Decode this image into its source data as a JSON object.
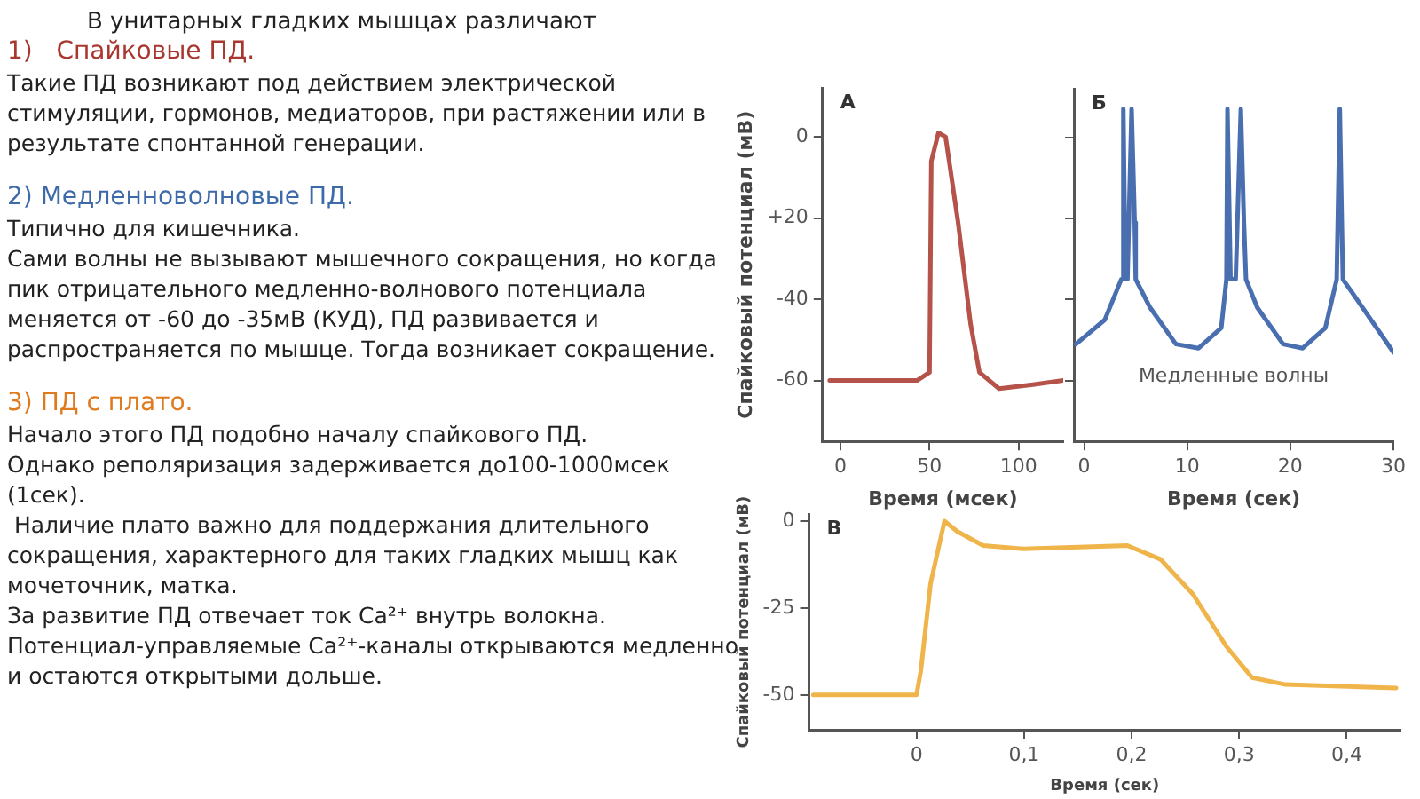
{
  "chart_data": [
    {
      "type": "other",
      "title": "В унитарных гладких мышцах различают",
      "annotations": [
        "1)   Спайковые ПД.",
        "Такие ПД возникают под действием электрической стимуляции, гормонов, медиаторов, при растяжении или в результате спонтанной генерации.",
        "2) Медленноволновые ПД.",
        "Типично для кишечника.\nСами волны не вызывают мышечного сокращения, но когда пик отрицательного медленно-волнового потенциала меняется от -60 до -35мВ (КУД), ПД развивается и распространяется по мышце. Тогда возникает сокращение.",
        "3) ПД с плато.",
        "Начало этого ПД подобно началу спайкового ПД.\nОднако реполяризация задерживается до100-1000мсек (1сек).\n Наличие плато важно для поддержания длительного сокращения, характерного для таких гладких мышц как мочеточник, матка.\nЗа развитие ПД отвечает ток Ca²⁺ внутрь волокна.\nПотенциал-управляемые Ca²⁺-каналы открываются медленно и остаются открытыми дольше."
      ]
    },
    {
      "type": "line",
      "title": "А",
      "xlabel": "Время (мсек)",
      "ylabel": "Спайковый потенциал (мВ)",
      "xlim": [
        -10,
        125
      ],
      "ylim": [
        -75,
        12
      ],
      "xticks": [
        0,
        50,
        100
      ],
      "yticks": [
        0,
        {
          "value": -20,
          "label": "+20"
        },
        -40,
        -60
      ],
      "marker": "none",
      "series": [
        {
          "color": "#b5524a",
          "x": [
            -6,
            43,
            50,
            51,
            55,
            59,
            66,
            73,
            78,
            89,
            108,
            125
          ],
          "values": [
            -60,
            -60,
            -58,
            -6,
            1,
            0,
            -21,
            -46,
            -58,
            -62,
            -61,
            -60
          ]
        }
      ]
    },
    {
      "type": "line",
      "title": "Б",
      "xlabel": "Время (сек)",
      "xlim": [
        -1,
        30
      ],
      "ylim": [
        -75,
        12
      ],
      "xticks": [
        0,
        10,
        20,
        30
      ],
      "yticks": [
        {
          "value": 0,
          "label": null
        },
        {
          "value": -20,
          "label": null
        },
        {
          "value": -40,
          "label": null
        },
        {
          "value": -60,
          "label": null
        }
      ],
      "tick_labels": "x",
      "marker": "none",
      "annotations": [
        "Медленные волны"
      ],
      "series": [
        {
          "color": "#4a6fb0",
          "x": [
            -0.8,
            2,
            3.6,
            3.7,
            3.8,
            4,
            4.2,
            4.6,
            4.9,
            5,
            6.4,
            8.9,
            11.1,
            13.3,
            13.8,
            13.9,
            14.2,
            14.7,
            15.2,
            15.5,
            15.7,
            16.8,
            19.3,
            21.2,
            23.4,
            24.5,
            24.8,
            25.1,
            26.2,
            30
          ],
          "values": [
            -51,
            -45,
            -35,
            -35,
            7,
            -35,
            -35,
            7,
            -21,
            -35,
            -42,
            -51,
            -52,
            -47,
            -35,
            7,
            -35,
            -35,
            7,
            -21,
            -35,
            -42,
            -51,
            -52,
            -47,
            -35,
            7,
            -35,
            -39,
            -53
          ]
        }
      ]
    },
    {
      "type": "line",
      "title": "В",
      "xlabel": "Время (сек)",
      "ylabel": "Спайковый потенциал (мВ)",
      "xlim": [
        -0.1,
        0.45
      ],
      "ylim": [
        -60,
        2
      ],
      "xticks": [
        0,
        {
          "value": 0.1,
          "label": "0,1"
        },
        {
          "value": 0.2,
          "label": "0,2"
        },
        {
          "value": 0.3,
          "label": "0,3"
        },
        {
          "value": 0.4,
          "label": "0,4"
        }
      ],
      "yticks": [
        0,
        -25,
        -50
      ],
      "marker": "none",
      "series": [
        {
          "color": "#f0b54a",
          "x": [
            -0.096,
            0,
            0.004,
            0.013,
            0.026,
            0.038,
            0.062,
            0.099,
            0.196,
            0.227,
            0.257,
            0.288,
            0.312,
            0.343,
            0.446
          ],
          "values": [
            -50,
            -50,
            -43,
            -18,
            0,
            -3,
            -7,
            -8,
            -7,
            -11,
            -21,
            -36,
            -45,
            -47,
            -48
          ]
        }
      ]
    }
  ]
}
